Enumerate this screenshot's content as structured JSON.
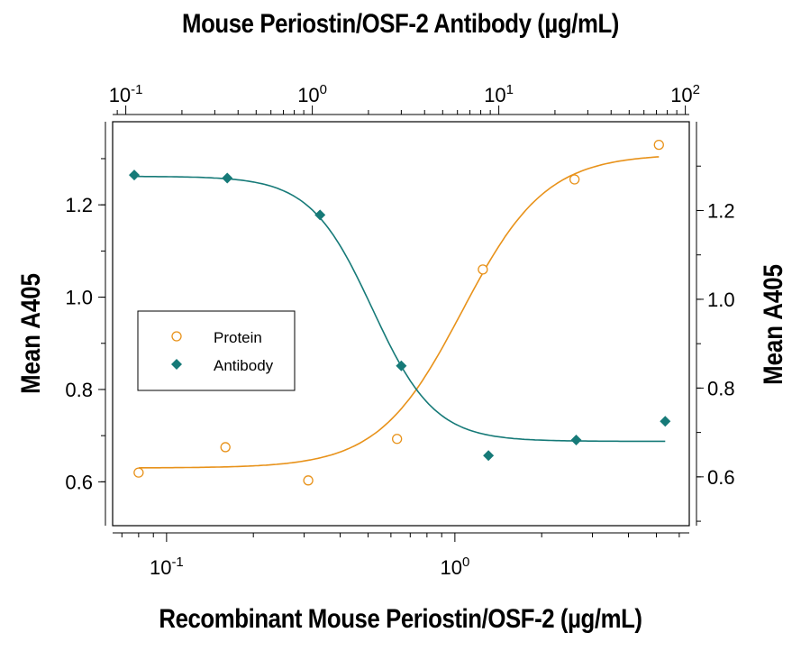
{
  "chart_data": {
    "type": "scatter",
    "title_top": "Mouse Periostin/OSF-2 Antibody (µg/mL)",
    "xlabel": "Recombinant Mouse Periostin/OSF-2 (µg/mL)",
    "ylabel_left": "Mean A405",
    "ylabel_right": "Mean A405",
    "x_scale": "log",
    "x_bottom_range": [
      0.065,
      6.5
    ],
    "x_bottom_ticks": [
      "10-1",
      "10 0"
    ],
    "x_top_range": [
      0.085,
      105
    ],
    "x_top_ticks": [
      "10-1",
      "10 0",
      "10 1",
      "10 2"
    ],
    "y_left_range": [
      0.505,
      1.38
    ],
    "y_left_ticks": [
      0.6,
      0.8,
      1.0,
      1.2
    ],
    "y_right_range": [
      0.49,
      1.4
    ],
    "y_right_ticks": [
      0.6,
      0.8,
      1.0,
      1.2
    ],
    "grid": false,
    "legend_position": "center-left",
    "series": [
      {
        "name": "Protein",
        "axis": "bottom-left",
        "marker": "open-circle",
        "color": "#E8921A",
        "points": [
          [
            0.08,
            0.62
          ],
          [
            0.16,
            0.675
          ],
          [
            0.31,
            0.603
          ],
          [
            0.63,
            0.693
          ],
          [
            1.25,
            1.06
          ],
          [
            2.6,
            1.255
          ],
          [
            5.1,
            1.33
          ]
        ],
        "fit": {
          "bottom": 0.63,
          "top": 1.31,
          "ec50": 1.06,
          "hill": 3.0
        }
      },
      {
        "name": "Antibody",
        "axis": "top-right",
        "marker": "filled-diamond",
        "color": "#167A78",
        "points": [
          [
            0.111,
            1.28
          ],
          [
            0.35,
            1.273
          ],
          [
            1.1,
            1.19
          ],
          [
            3.0,
            0.85
          ],
          [
            8.8,
            0.648
          ],
          [
            26,
            0.683
          ],
          [
            78,
            0.725
          ]
        ],
        "fit": {
          "bottom": 0.68,
          "top": 1.277,
          "ec50": 2.1,
          "hill": 2.6
        }
      }
    ]
  }
}
